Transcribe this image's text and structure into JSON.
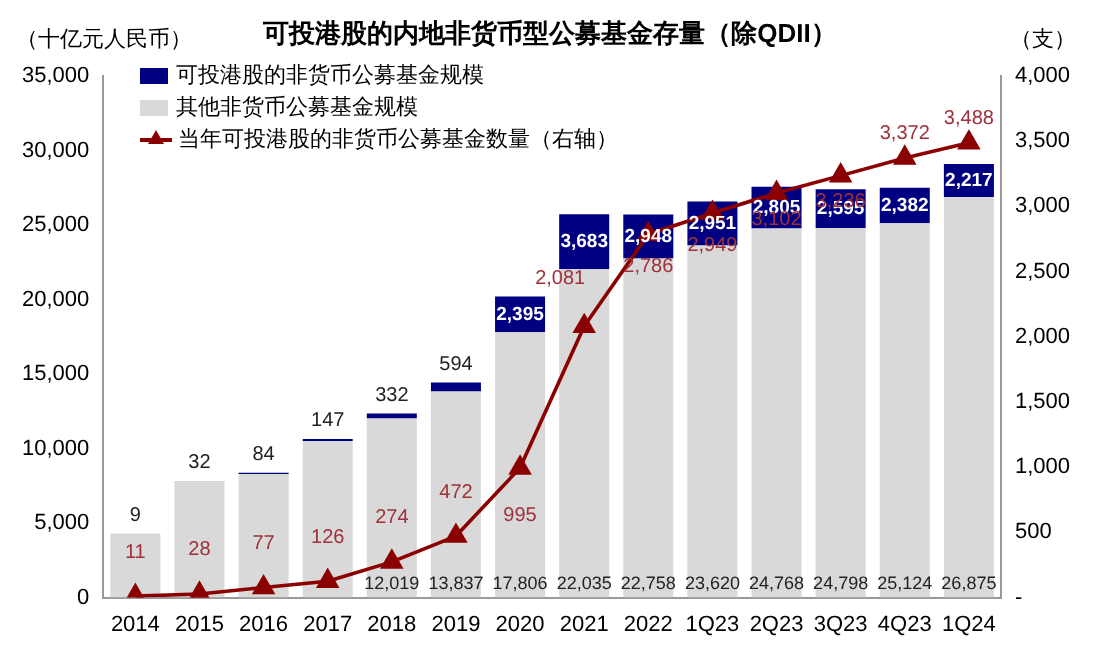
{
  "chart_data": {
    "type": "bar",
    "title": "可投港股的内地非货币型公募基金存量（除QDII）",
    "ylabel": "（十亿元人民币）",
    "y2label": "（支）",
    "categories": [
      "2014",
      "2015",
      "2016",
      "2017",
      "2018",
      "2019",
      "2020",
      "2021",
      "2022",
      "1Q23",
      "2Q23",
      "3Q23",
      "4Q23",
      "1Q24"
    ],
    "stacked": true,
    "legend": "top left",
    "grid": false,
    "ylim": [
      0,
      35000
    ],
    "yticks": [
      0,
      {
        "value": 5000,
        "label": "5,000"
      },
      {
        "value": 10000,
        "label": "10,000"
      },
      {
        "value": 15000,
        "label": "15,000"
      },
      {
        "value": 20000,
        "label": "20,000"
      },
      {
        "value": 25000,
        "label": "25,000"
      },
      {
        "value": 30000,
        "label": "30,000"
      },
      {
        "value": 35000,
        "label": "35,000"
      }
    ],
    "y2lim": [
      0,
      4000
    ],
    "y2ticks": [
      {
        "value": 0,
        "label": "-"
      },
      500,
      {
        "value": 1000,
        "label": "1,000"
      },
      {
        "value": 1500,
        "label": "1,500"
      },
      {
        "value": 2000,
        "label": "2,000"
      },
      {
        "value": 2500,
        "label": "2,500"
      },
      {
        "value": 3000,
        "label": "3,000"
      },
      {
        "value": 3500,
        "label": "3,500"
      },
      {
        "value": 4000,
        "label": "4,000"
      }
    ],
    "series": [
      {
        "name": "其他非货币公募基金规模",
        "color": "#d9d9d9",
        "values": [
          4300,
          7800,
          8300,
          10500,
          12019,
          13837,
          17806,
          22035,
          22758,
          23620,
          24768,
          24798,
          25124,
          26875
        ],
        "value_labels": [
          null,
          null,
          null,
          null,
          "12,019",
          "13,837",
          "17,806",
          "22,035",
          "22,758",
          "23,620",
          "24,768",
          "24,798",
          "25,124",
          "26,875"
        ]
      },
      {
        "name": "可投港股的非货币公募基金规模",
        "color": "#000080",
        "values": [
          9,
          32,
          84,
          147,
          332,
          594,
          2395,
          3683,
          2948,
          2951,
          2805,
          2595,
          2382,
          2217
        ],
        "value_labels": [
          "9",
          "32",
          "84",
          "147",
          "332",
          "594",
          "2,395",
          "3,683",
          "2,948",
          "2,951",
          "2,805",
          "2,595",
          "2,382",
          "2,217"
        ]
      },
      {
        "name": "当年可投港股的非货币公募基金数量（右轴）",
        "type": "line",
        "axis": "y2",
        "color": "#8b0000",
        "marker": "triangle",
        "line_style": "solid",
        "values": [
          11,
          28,
          77,
          126,
          274,
          472,
          995,
          2081,
          2786,
          2949,
          3102,
          3236,
          3372,
          3488
        ],
        "value_labels": [
          "11",
          "28",
          "77",
          "126",
          "274",
          "472",
          "995",
          "2,081",
          "2,786",
          "2,949",
          "3,102",
          "3,236",
          "3,372",
          "3,488"
        ]
      }
    ]
  }
}
